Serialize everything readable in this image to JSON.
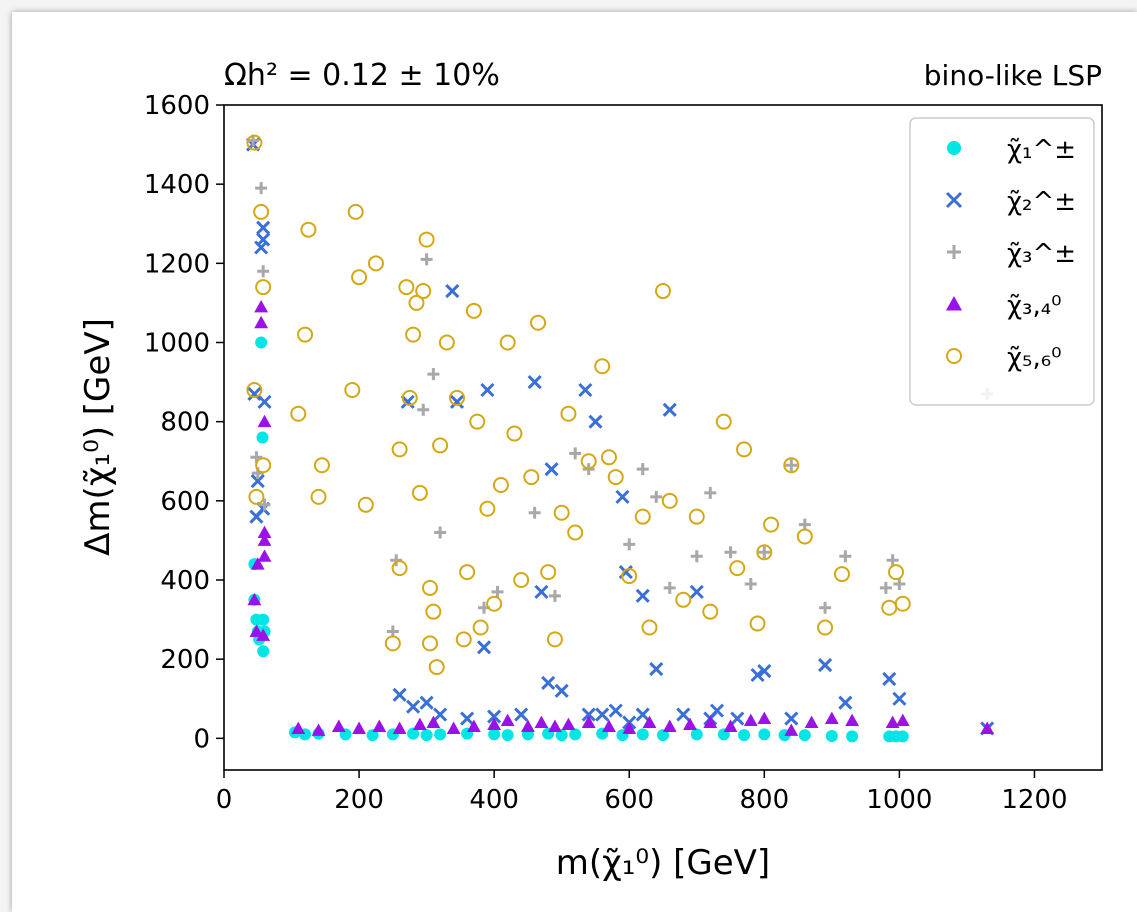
{
  "chart_data": {
    "type": "scatter",
    "title_left": "Ωh² = 0.12 ± 10%",
    "title_right": "bino-like LSP",
    "xlabel": "m(χ̃₁⁰) [GeV]",
    "ylabel": "Δm(χ̃₁⁰) [GeV]",
    "xlim": [
      0,
      1300
    ],
    "ylim": [
      -80,
      1600
    ],
    "xticks": [
      0,
      200,
      400,
      600,
      800,
      1000,
      1200
    ],
    "yticks": [
      0,
      200,
      400,
      600,
      800,
      1000,
      1200,
      1400,
      1600
    ],
    "grid": false,
    "legend_position": "top-right",
    "series": [
      {
        "name": "χ̃₁^±",
        "marker": "circle-filled",
        "color": "#00e5e5",
        "points": [
          [
            45,
            440
          ],
          [
            45,
            350
          ],
          [
            48,
            300
          ],
          [
            50,
            270
          ],
          [
            52,
            250
          ],
          [
            55,
            1000
          ],
          [
            57,
            760
          ],
          [
            58,
            300
          ],
          [
            58,
            220
          ],
          [
            60,
            270
          ],
          [
            105,
            15
          ],
          [
            120,
            10
          ],
          [
            140,
            12
          ],
          [
            180,
            10
          ],
          [
            220,
            8
          ],
          [
            250,
            10
          ],
          [
            280,
            12
          ],
          [
            300,
            8
          ],
          [
            320,
            10
          ],
          [
            360,
            12
          ],
          [
            400,
            10
          ],
          [
            420,
            8
          ],
          [
            450,
            10
          ],
          [
            480,
            12
          ],
          [
            500,
            8
          ],
          [
            520,
            10
          ],
          [
            560,
            12
          ],
          [
            590,
            8
          ],
          [
            620,
            10
          ],
          [
            650,
            8
          ],
          [
            700,
            10
          ],
          [
            740,
            10
          ],
          [
            770,
            8
          ],
          [
            800,
            10
          ],
          [
            830,
            8
          ],
          [
            860,
            8
          ],
          [
            900,
            6
          ],
          [
            930,
            5
          ],
          [
            985,
            5
          ],
          [
            995,
            5
          ],
          [
            1005,
            5
          ]
        ]
      },
      {
        "name": "χ̃₂^±",
        "marker": "x",
        "color": "#3a6fd8",
        "points": [
          [
            43,
            1500
          ],
          [
            45,
            870
          ],
          [
            48,
            560
          ],
          [
            50,
            650
          ],
          [
            55,
            1240
          ],
          [
            58,
            1260
          ],
          [
            58,
            1290
          ],
          [
            58,
            580
          ],
          [
            60,
            850
          ],
          [
            272,
            850
          ],
          [
            338,
            1130
          ],
          [
            345,
            850
          ],
          [
            385,
            230
          ],
          [
            390,
            880
          ],
          [
            460,
            900
          ],
          [
            470,
            370
          ],
          [
            485,
            680
          ],
          [
            535,
            880
          ],
          [
            550,
            800
          ],
          [
            590,
            610
          ],
          [
            595,
            420
          ],
          [
            620,
            360
          ],
          [
            660,
            830
          ],
          [
            700,
            370
          ],
          [
            730,
            70
          ],
          [
            790,
            160
          ],
          [
            800,
            170
          ],
          [
            890,
            185
          ],
          [
            985,
            150
          ],
          [
            260,
            110
          ],
          [
            280,
            80
          ],
          [
            300,
            90
          ],
          [
            320,
            60
          ],
          [
            360,
            50
          ],
          [
            400,
            55
          ],
          [
            440,
            60
          ],
          [
            480,
            140
          ],
          [
            500,
            120
          ],
          [
            540,
            60
          ],
          [
            560,
            60
          ],
          [
            580,
            70
          ],
          [
            600,
            40
          ],
          [
            620,
            60
          ],
          [
            640,
            175
          ],
          [
            680,
            60
          ],
          [
            720,
            50
          ],
          [
            760,
            50
          ],
          [
            840,
            50
          ],
          [
            920,
            90
          ],
          [
            1000,
            100
          ],
          [
            1130,
            25
          ]
        ]
      },
      {
        "name": "χ̃₃^±",
        "marker": "plus",
        "color": "#a8a8a8",
        "points": [
          [
            43,
            1510
          ],
          [
            48,
            710
          ],
          [
            50,
            670
          ],
          [
            55,
            1390
          ],
          [
            58,
            1180
          ],
          [
            60,
            590
          ],
          [
            295,
            830
          ],
          [
            300,
            1210
          ],
          [
            310,
            920
          ],
          [
            320,
            520
          ],
          [
            385,
            330
          ],
          [
            405,
            370
          ],
          [
            460,
            570
          ],
          [
            490,
            360
          ],
          [
            520,
            720
          ],
          [
            540,
            680
          ],
          [
            600,
            490
          ],
          [
            620,
            680
          ],
          [
            640,
            610
          ],
          [
            660,
            380
          ],
          [
            700,
            460
          ],
          [
            720,
            620
          ],
          [
            750,
            470
          ],
          [
            780,
            390
          ],
          [
            800,
            470
          ],
          [
            840,
            690
          ],
          [
            860,
            540
          ],
          [
            890,
            330
          ],
          [
            920,
            460
          ],
          [
            980,
            380
          ],
          [
            990,
            450
          ],
          [
            1000,
            390
          ],
          [
            1130,
            870
          ],
          [
            250,
            270
          ],
          [
            255,
            450
          ]
        ]
      },
      {
        "name": "χ̃₃,₄⁰",
        "marker": "triangle",
        "color": "#9b12e8",
        "points": [
          [
            45,
            350
          ],
          [
            48,
            270
          ],
          [
            50,
            440
          ],
          [
            55,
            1090
          ],
          [
            55,
            1050
          ],
          [
            58,
            260
          ],
          [
            60,
            460
          ],
          [
            60,
            500
          ],
          [
            60,
            520
          ],
          [
            60,
            800
          ],
          [
            110,
            25
          ],
          [
            140,
            20
          ],
          [
            170,
            30
          ],
          [
            200,
            25
          ],
          [
            230,
            30
          ],
          [
            260,
            25
          ],
          [
            290,
            35
          ],
          [
            310,
            40
          ],
          [
            340,
            25
          ],
          [
            370,
            30
          ],
          [
            400,
            35
          ],
          [
            420,
            45
          ],
          [
            450,
            30
          ],
          [
            470,
            40
          ],
          [
            490,
            30
          ],
          [
            510,
            35
          ],
          [
            540,
            40
          ],
          [
            570,
            30
          ],
          [
            600,
            25
          ],
          [
            630,
            40
          ],
          [
            660,
            30
          ],
          [
            690,
            35
          ],
          [
            720,
            40
          ],
          [
            750,
            30
          ],
          [
            780,
            45
          ],
          [
            800,
            50
          ],
          [
            840,
            20
          ],
          [
            870,
            40
          ],
          [
            900,
            50
          ],
          [
            930,
            45
          ],
          [
            990,
            40
          ],
          [
            1005,
            45
          ],
          [
            1130,
            25
          ]
        ]
      },
      {
        "name": "χ̃₅,₆⁰",
        "marker": "circle-open",
        "color": "#d4a814",
        "points": [
          [
            45,
            1505
          ],
          [
            45,
            880
          ],
          [
            48,
            610
          ],
          [
            55,
            1330
          ],
          [
            58,
            1140
          ],
          [
            58,
            690
          ],
          [
            110,
            820
          ],
          [
            120,
            1020
          ],
          [
            125,
            1285
          ],
          [
            140,
            610
          ],
          [
            145,
            690
          ],
          [
            190,
            880
          ],
          [
            195,
            1330
          ],
          [
            200,
            1165
          ],
          [
            210,
            590
          ],
          [
            225,
            1200
          ],
          [
            250,
            240
          ],
          [
            260,
            430
          ],
          [
            260,
            730
          ],
          [
            270,
            1140
          ],
          [
            275,
            860
          ],
          [
            280,
            1020
          ],
          [
            285,
            1100
          ],
          [
            290,
            620
          ],
          [
            295,
            1130
          ],
          [
            300,
            1260
          ],
          [
            305,
            380
          ],
          [
            305,
            240
          ],
          [
            310,
            320
          ],
          [
            315,
            180
          ],
          [
            320,
            740
          ],
          [
            330,
            1000
          ],
          [
            345,
            860
          ],
          [
            355,
            250
          ],
          [
            360,
            420
          ],
          [
            370,
            1080
          ],
          [
            375,
            800
          ],
          [
            380,
            280
          ],
          [
            390,
            580
          ],
          [
            400,
            340
          ],
          [
            410,
            640
          ],
          [
            420,
            1000
          ],
          [
            430,
            770
          ],
          [
            440,
            400
          ],
          [
            455,
            660
          ],
          [
            465,
            1050
          ],
          [
            480,
            420
          ],
          [
            490,
            250
          ],
          [
            500,
            570
          ],
          [
            510,
            820
          ],
          [
            520,
            520
          ],
          [
            540,
            700
          ],
          [
            560,
            940
          ],
          [
            570,
            710
          ],
          [
            580,
            660
          ],
          [
            600,
            410
          ],
          [
            620,
            560
          ],
          [
            630,
            280
          ],
          [
            650,
            1130
          ],
          [
            660,
            600
          ],
          [
            680,
            350
          ],
          [
            700,
            560
          ],
          [
            720,
            320
          ],
          [
            740,
            800
          ],
          [
            760,
            430
          ],
          [
            770,
            730
          ],
          [
            790,
            290
          ],
          [
            800,
            470
          ],
          [
            810,
            540
          ],
          [
            840,
            690
          ],
          [
            860,
            510
          ],
          [
            890,
            280
          ],
          [
            915,
            415
          ],
          [
            985,
            330
          ],
          [
            995,
            420
          ],
          [
            1005,
            340
          ]
        ]
      }
    ]
  }
}
